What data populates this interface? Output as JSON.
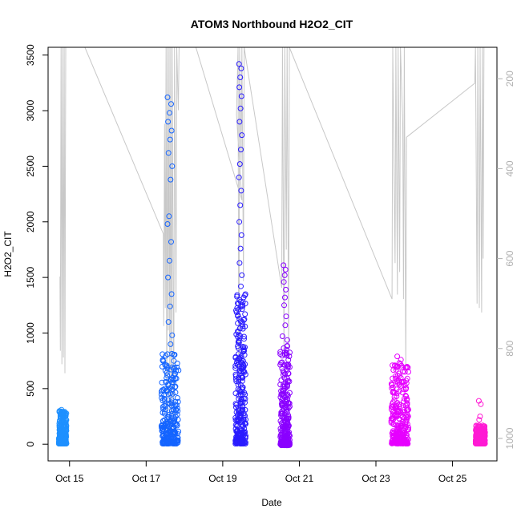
{
  "chart_data": {
    "type": "scatter",
    "title": "ATOM3 Northbound H2O2_CIT",
    "xlabel": "Date",
    "ylabel": "H2O2_CIT",
    "x_ticks": [
      "Oct 15",
      "Oct 17",
      "Oct 19",
      "Oct 21",
      "Oct 23",
      "Oct 25"
    ],
    "x_tick_days": [
      15,
      17,
      19,
      21,
      23,
      25
    ],
    "xlim": [
      14.44,
      26.16
    ],
    "ylim": [
      -150,
      3570
    ],
    "y_ticks": [
      0,
      500,
      1000,
      1500,
      2000,
      2500,
      3000,
      3500
    ],
    "y2_ticks": [
      200,
      400,
      600,
      800,
      1000
    ],
    "y2lim": [
      1050,
      130
    ],
    "y2_inverted": true,
    "grid": false,
    "marker": "open-circle",
    "secondary_line_color": "#c8c8c8",
    "series": [
      {
        "color": "#1e90ff",
        "clusters": [
          {
            "x_range": [
              14.72,
              14.92
            ],
            "y_min": 5,
            "y_max": 300,
            "spikes": [
              310,
              280,
              260,
              240,
              230,
              215
            ]
          }
        ]
      },
      {
        "color": "#1464ff",
        "clusters": [
          {
            "x_range": [
              17.4,
              17.85
            ],
            "y_min": 5,
            "y_max": 820,
            "spikes": [
              3120,
              3060,
              2980,
              2900,
              2820,
              2740,
              2620,
              2500,
              2380,
              2050,
              1980,
              1820,
              1650,
              1500,
              1350,
              1240,
              1100,
              980,
              900
            ]
          }
        ]
      },
      {
        "color": "#2a1cff",
        "clusters": [
          {
            "x_range": [
              19.33,
              19.6
            ],
            "y_min": 5,
            "y_max": 1350,
            "spikes": [
              3420,
              3380,
              3300,
              3210,
              3130,
              3020,
              2900,
              2780,
              2650,
              2520,
              2400,
              2280,
              2150,
              2000,
              1880,
              1760,
              1630,
              1520,
              1420
            ]
          }
        ]
      },
      {
        "color": "#8a00ff",
        "clusters": [
          {
            "x_range": [
              20.5,
              20.75
            ],
            "y_min": -10,
            "y_max": 1000,
            "spikes": [
              1610,
              1570,
              1520,
              1460,
              1390,
              1320,
              1250,
              1150,
              1070
            ]
          }
        ]
      },
      {
        "color": "#e600ff",
        "clusters": [
          {
            "x_range": [
              23.4,
              23.85
            ],
            "y_min": 5,
            "y_max": 720,
            "spikes": [
              790,
              760,
              730,
              700,
              690
            ]
          }
        ]
      },
      {
        "color": "#ff1ad4",
        "clusters": [
          {
            "x_range": [
              25.6,
              25.85
            ],
            "y_min": 5,
            "y_max": 170,
            "spikes": [
              390,
              360,
              250,
              220
            ]
          }
        ]
      }
    ],
    "secondary_line": [
      [
        14.75,
        640
      ],
      [
        14.76,
        805
      ],
      [
        14.78,
        130
      ],
      [
        14.8,
        835
      ],
      [
        14.82,
        130
      ],
      [
        14.84,
        820
      ],
      [
        14.86,
        130
      ],
      [
        14.88,
        855
      ],
      [
        14.9,
        130
      ],
      [
        15.4,
        130
      ],
      [
        17.45,
        545
      ],
      [
        17.46,
        750
      ],
      [
        17.48,
        300
      ],
      [
        17.5,
        710
      ],
      [
        17.52,
        130
      ],
      [
        17.54,
        1010
      ],
      [
        17.56,
        130
      ],
      [
        17.58,
        760
      ],
      [
        17.6,
        130
      ],
      [
        17.62,
        1000
      ],
      [
        17.64,
        130
      ],
      [
        17.66,
        990
      ],
      [
        17.68,
        130
      ],
      [
        17.72,
        1000
      ],
      [
        17.74,
        130
      ],
      [
        17.78,
        720
      ],
      [
        17.8,
        130
      ],
      [
        17.84,
        270
      ],
      [
        17.86,
        130
      ],
      [
        18.3,
        130
      ],
      [
        19.5,
        470
      ],
      [
        19.36,
        280
      ],
      [
        19.4,
        130
      ],
      [
        19.42,
        1000
      ],
      [
        19.44,
        130
      ],
      [
        19.48,
        400
      ],
      [
        19.5,
        130
      ],
      [
        19.54,
        650
      ],
      [
        19.56,
        130
      ],
      [
        20.54,
        665
      ],
      [
        20.56,
        130
      ],
      [
        20.6,
        820
      ],
      [
        20.62,
        130
      ],
      [
        20.66,
        580
      ],
      [
        20.68,
        130
      ],
      [
        20.72,
        810
      ],
      [
        20.74,
        130
      ],
      [
        23.42,
        690
      ],
      [
        23.44,
        130
      ],
      [
        23.5,
        610
      ],
      [
        23.52,
        130
      ],
      [
        23.56,
        680
      ],
      [
        23.58,
        130
      ],
      [
        23.62,
        630
      ],
      [
        23.64,
        130
      ],
      [
        23.7,
        300
      ],
      [
        23.72,
        690
      ],
      [
        23.74,
        130
      ],
      [
        23.78,
        850
      ],
      [
        23.8,
        330
      ],
      [
        25.58,
        210
      ],
      [
        25.6,
        130
      ],
      [
        25.64,
        700
      ],
      [
        25.66,
        130
      ],
      [
        25.7,
        710
      ],
      [
        25.72,
        130
      ],
      [
        25.76,
        720
      ],
      [
        25.78,
        130
      ],
      [
        25.8,
        600
      ],
      [
        25.82,
        130
      ]
    ]
  }
}
